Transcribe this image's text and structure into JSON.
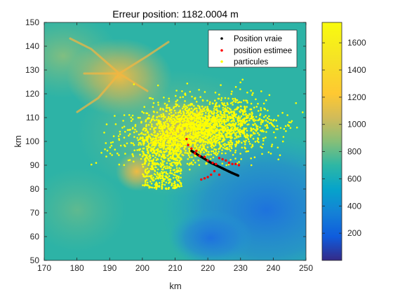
{
  "chart_data": {
    "type": "scatter",
    "title": "Erreur position: 1182.0004 m",
    "xlabel": "km",
    "ylabel": "km",
    "xlim": [
      170,
      250
    ],
    "ylim": [
      50,
      150
    ],
    "xticks": [
      "170",
      "180",
      "190",
      "200",
      "210",
      "220",
      "230",
      "240",
      "250"
    ],
    "yticks": [
      "50",
      "60",
      "70",
      "80",
      "90",
      "100",
      "110",
      "120",
      "130",
      "140",
      "150"
    ],
    "grid": false,
    "legend_position": "top-right",
    "background": {
      "type": "heatmap",
      "description": "terrain elevation map",
      "colormap": "parula",
      "clim": [
        0,
        1750
      ],
      "peaks": [
        {
          "x": 190,
          "y": 127,
          "value": 1450
        },
        {
          "x": 212,
          "y": 108,
          "value": 1350
        },
        {
          "x": 197,
          "y": 87,
          "value": 1250
        }
      ]
    },
    "colorbar": {
      "ticks": [
        "200",
        "400",
        "600",
        "800",
        "1000",
        "1200",
        "1400",
        "1600"
      ],
      "range": [
        0,
        1750
      ]
    },
    "series": [
      {
        "name": "Position vraie",
        "color": "#000000",
        "marker": "dot",
        "path": [
          [
            215.0,
            96.0
          ],
          [
            218.0,
            93.5
          ],
          [
            221.0,
            91.0
          ],
          [
            224.0,
            89.0
          ],
          [
            227.0,
            87.0
          ],
          [
            229.5,
            85.5
          ]
        ]
      },
      {
        "name": "position estimee",
        "color": "#ff0000",
        "marker": "dot",
        "points": [
          [
            214.0,
            98.5
          ],
          [
            215.0,
            97.0
          ],
          [
            216.5,
            96.0
          ],
          [
            217.5,
            94.0
          ],
          [
            219.0,
            93.5
          ],
          [
            220.0,
            92.0
          ],
          [
            221.5,
            91.0
          ],
          [
            222.5,
            90.5
          ],
          [
            223.5,
            93.0
          ],
          [
            224.5,
            92.5
          ],
          [
            225.5,
            92.0
          ],
          [
            226.5,
            91.0
          ],
          [
            227.5,
            90.5
          ],
          [
            228.5,
            90.5
          ],
          [
            229.5,
            90.0
          ],
          [
            222.0,
            87.5
          ],
          [
            221.0,
            86.0
          ],
          [
            220.0,
            85.0
          ],
          [
            219.0,
            84.5
          ],
          [
            218.0,
            84.0
          ],
          [
            223.5,
            86.0
          ],
          [
            213.5,
            101.0
          ],
          [
            216.0,
            95.0
          ]
        ]
      },
      {
        "name": "particules",
        "color": "#ffff00",
        "marker": "dot",
        "cloud": {
          "center": [
            218,
            105
          ],
          "spread": [
            13,
            8
          ],
          "count": 2600
        }
      }
    ]
  }
}
